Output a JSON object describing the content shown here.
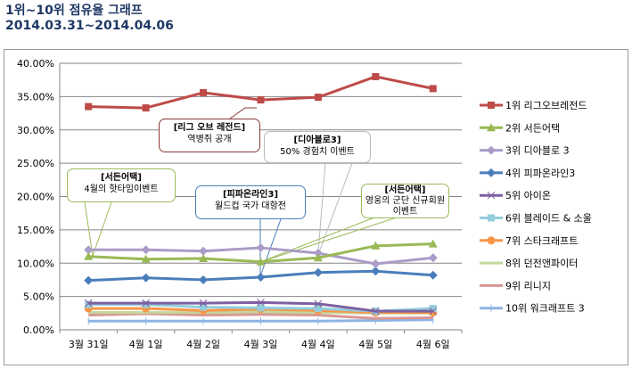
{
  "title": "1위~10위 점유율 그래프",
  "subtitle": "2014.03.31~2014.04.06",
  "chart_data": {
    "type": "line",
    "title": "1위~10위 점유율 그래프",
    "ylim": [
      0,
      40
    ],
    "yticks": [
      "0.00%",
      "5.00%",
      "10.00%",
      "15.00%",
      "20.00%",
      "25.00%",
      "30.00%",
      "35.00%",
      "40.00%"
    ],
    "categories": [
      "3월 31일",
      "4월 1일",
      "4월 2일",
      "4월 3일",
      "4월 4일",
      "4월 5일",
      "4월 6일"
    ],
    "legend_position": "right",
    "grid": true,
    "series": [
      {
        "name": "1위 리그오브레전드",
        "color": "#be4b48",
        "marker": "square",
        "values": [
          33.5,
          33.3,
          35.6,
          34.5,
          34.9,
          38.0,
          36.2
        ]
      },
      {
        "name": "2위 서든어택",
        "color": "#98b954",
        "marker": "triangle",
        "values": [
          11.0,
          10.6,
          10.7,
          10.2,
          10.8,
          12.6,
          12.9
        ]
      },
      {
        "name": "3위 디아블로 3",
        "color": "#aa9cc8",
        "marker": "diamond",
        "values": [
          12.0,
          12.0,
          11.8,
          12.3,
          11.5,
          9.9,
          10.8
        ]
      },
      {
        "name": "4위 피파온라인3",
        "color": "#4a7ebb",
        "marker": "diamond",
        "values": [
          7.4,
          7.8,
          7.5,
          7.9,
          8.6,
          8.8,
          8.2
        ]
      },
      {
        "name": "5위 아이온",
        "color": "#7d60a0",
        "marker": "x",
        "values": [
          4.0,
          4.0,
          4.0,
          4.1,
          3.9,
          2.8,
          2.8
        ]
      },
      {
        "name": "6위 블레이드 & 소울",
        "color": "#93cddd",
        "marker": "square",
        "values": [
          3.8,
          3.8,
          3.4,
          3.3,
          3.2,
          2.8,
          3.2
        ]
      },
      {
        "name": "7위 스타크래프트",
        "color": "#f79646",
        "marker": "circle",
        "values": [
          3.2,
          3.2,
          2.9,
          3.1,
          2.9,
          2.6,
          2.6
        ]
      },
      {
        "name": "8위 던전앤파이터",
        "color": "#c3d69b",
        "marker": "none",
        "values": [
          2.6,
          2.6,
          2.6,
          2.7,
          2.6,
          2.5,
          2.5
        ]
      },
      {
        "name": "9위 리니지",
        "color": "#d99694",
        "marker": "none",
        "values": [
          2.2,
          2.4,
          2.2,
          2.3,
          2.2,
          1.7,
          1.8
        ]
      },
      {
        "name": "10위 워크래프트 3",
        "color": "#8eb4e3",
        "marker": "plus",
        "values": [
          1.3,
          1.3,
          1.3,
          1.3,
          1.3,
          1.4,
          1.5
        ]
      }
    ],
    "annotations": [
      {
        "title": "[리그 오브 레전드]",
        "text": "역병쥐 공개",
        "color": "#8b3a3a"
      },
      {
        "title": "[디아블로3]",
        "text": "50% 경험치 이벤트",
        "color": "#bbbbbb"
      },
      {
        "title": "[서든어택]",
        "text": "4월의 핫타임이벤트",
        "color": "#9bbb59"
      },
      {
        "title": "[피파온라인3]",
        "text": "월드컵 국가 대항전",
        "color": "#4a7ebb"
      },
      {
        "title": "[서든어택]",
        "text": "영웅의 군단 신규회원이벤트",
        "color": "#9bbb59"
      }
    ]
  }
}
